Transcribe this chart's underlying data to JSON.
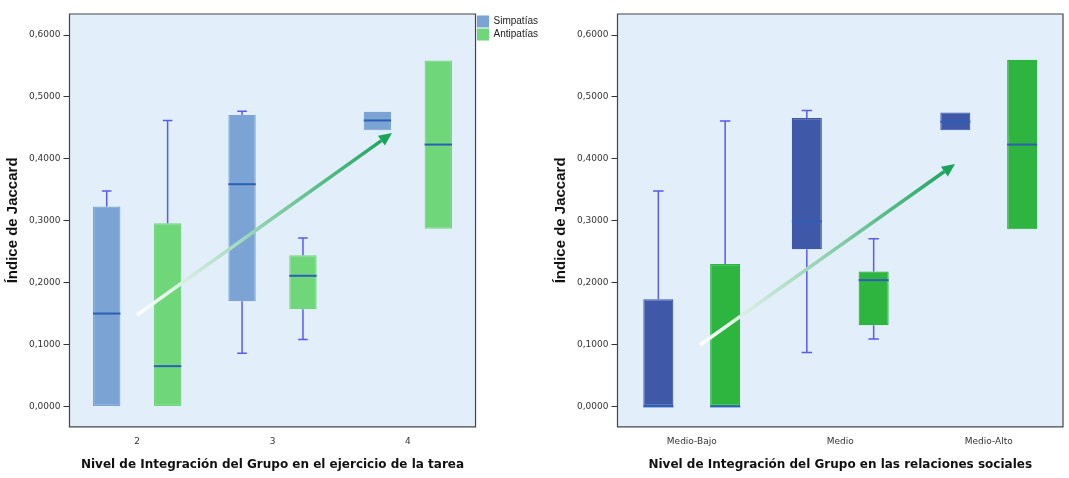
{
  "chart_data": [
    {
      "type": "box",
      "xlabel": "Nivel de Integración del Grupo en el ejercicio de la tarea",
      "ylabel": "Índice de Jaccard",
      "categories": [
        "2",
        "3",
        "4"
      ],
      "ylim": [
        -0.033,
        0.634
      ],
      "yticks": [
        {
          "value": 0,
          "label": "0,0000"
        },
        {
          "value": 0.1,
          "label": "0,1000"
        },
        {
          "value": 0.2,
          "label": "0,2000"
        },
        {
          "value": 0.3,
          "label": "0,3000"
        },
        {
          "value": 0.4,
          "label": "0,4000"
        },
        {
          "value": 0.5,
          "label": "0,5000"
        },
        {
          "value": 0.6,
          "label": "0,6000"
        }
      ],
      "legend": "top right",
      "grid": false,
      "series": [
        {
          "name": "Simpatías",
          "color": "#7ba4d4",
          "boxes": [
            {
              "low": 0,
              "q1": 0,
              "median": 0.15,
              "q3": 0.323,
              "high": 0.348
            },
            {
              "low": 0.086,
              "q1": 0.17,
              "median": 0.359,
              "q3": 0.471,
              "high": 0.477
            },
            {
              "low": 0.446,
              "q1": 0.446,
              "median": 0.462,
              "q3": 0.476,
              "high": 0.476
            }
          ]
        },
        {
          "name": "Antipatías",
          "color": "#6fd67a",
          "boxes": [
            {
              "low": 0,
              "q1": 0,
              "median": 0.065,
              "q3": 0.296,
              "high": 0.462
            },
            {
              "low": 0.108,
              "q1": 0.157,
              "median": 0.211,
              "q3": 0.244,
              "high": 0.272
            },
            {
              "low": 0.287,
              "q1": 0.287,
              "median": 0.423,
              "q3": 0.559,
              "high": 0.559
            }
          ]
        }
      ]
    },
    {
      "type": "box",
      "xlabel": "Nivel de Integración del Grupo en las relaciones sociales",
      "ylabel": "Índice de Jaccard",
      "categories": [
        "Medio-Bajo",
        "Medio",
        "Medio-Alto"
      ],
      "ylim": [
        -0.033,
        0.634
      ],
      "yticks": [
        {
          "value": 0,
          "label": "0,0000"
        },
        {
          "value": 0.1,
          "label": "0,1000"
        },
        {
          "value": 0.2,
          "label": "0,2000"
        },
        {
          "value": 0.3,
          "label": "0,3000"
        },
        {
          "value": 0.4,
          "label": "0,4000"
        },
        {
          "value": 0.5,
          "label": "0,5000"
        },
        {
          "value": 0.6,
          "label": "0,6000"
        }
      ],
      "grid": false,
      "series": [
        {
          "color": "#3f58a8",
          "boxes": [
            {
              "low": 0,
              "q1": 0,
              "median": 0,
              "q3": 0.173,
              "high": 0.348
            },
            {
              "low": 0.087,
              "q1": 0.254,
              "median": 0.299,
              "q3": 0.466,
              "high": 0.478
            },
            {
              "low": 0.446,
              "q1": 0.446,
              "median": 0.46,
              "q3": 0.475,
              "high": 0.475
            }
          ]
        },
        {
          "color": "#2db540",
          "boxes": [
            {
              "low": 0,
              "q1": 0,
              "median": 0,
              "q3": 0.23,
              "high": 0.461
            },
            {
              "low": 0.109,
              "q1": 0.131,
              "median": 0.204,
              "q3": 0.218,
              "high": 0.271
            },
            {
              "low": 0.286,
              "q1": 0.286,
              "median": 0.423,
              "q3": 0.56,
              "high": 0.56
            }
          ]
        }
      ]
    }
  ]
}
